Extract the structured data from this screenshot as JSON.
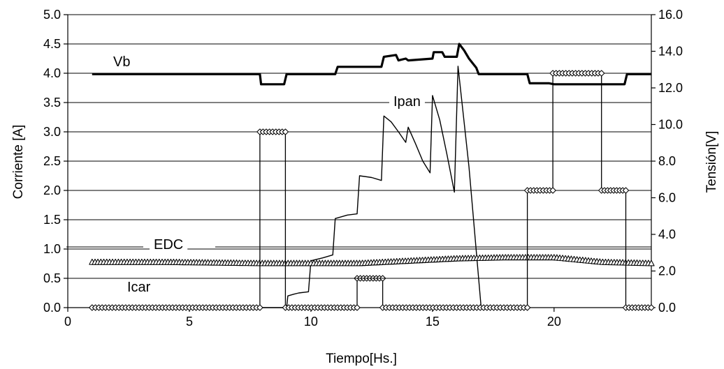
{
  "chart_data": {
    "type": "line",
    "title": "",
    "xlabel": "Tiempo[Hs.]",
    "ylabel_left": "Corriente [A]",
    "ylabel_right": "Tensión[V]",
    "xlim": [
      0,
      24
    ],
    "ylim_left": [
      0,
      5
    ],
    "ylim_right": [
      0,
      16
    ],
    "x_ticks": [
      0,
      5,
      10,
      15,
      20
    ],
    "y_left_ticks": [
      "0.0",
      "0.5",
      "1.0",
      "1.5",
      "2.0",
      "2.5",
      "3.0",
      "3.5",
      "4.0",
      "4.5",
      "5.0"
    ],
    "y_right_ticks": [
      "0.0",
      "2.0",
      "4.0",
      "6.0",
      "8.0",
      "10.0",
      "12.0",
      "14.0",
      "16.0"
    ],
    "grid": "horizontal",
    "series": [
      {
        "name": "Vb",
        "axis": "right",
        "style": "thick-line",
        "points": [
          [
            1,
            12.75
          ],
          [
            7.9,
            12.75
          ],
          [
            7.95,
            12.2
          ],
          [
            8.9,
            12.2
          ],
          [
            9,
            12.75
          ],
          [
            11,
            12.75
          ],
          [
            11.1,
            13.15
          ],
          [
            12.9,
            13.15
          ],
          [
            13,
            13.7
          ],
          [
            13.5,
            13.8
          ],
          [
            13.6,
            13.5
          ],
          [
            13.9,
            13.6
          ],
          [
            14,
            13.5
          ],
          [
            15,
            13.6
          ],
          [
            15.05,
            13.95
          ],
          [
            15.4,
            13.95
          ],
          [
            15.5,
            13.7
          ],
          [
            16,
            13.7
          ],
          [
            16.1,
            14.4
          ],
          [
            16.3,
            14.05
          ],
          [
            16.5,
            13.6
          ],
          [
            16.8,
            13.1
          ],
          [
            16.9,
            12.75
          ],
          [
            18.9,
            12.75
          ],
          [
            19,
            12.25
          ],
          [
            19.8,
            12.25
          ],
          [
            20,
            12.2
          ],
          [
            22.9,
            12.2
          ],
          [
            23,
            12.75
          ],
          [
            24,
            12.75
          ]
        ]
      },
      {
        "name": "Ipan",
        "axis": "left",
        "style": "thin-line",
        "points": [
          [
            8,
            0
          ],
          [
            9,
            0
          ],
          [
            9.05,
            0.2
          ],
          [
            9.3,
            0.23
          ],
          [
            9.5,
            0.25
          ],
          [
            9.9,
            0.27
          ],
          [
            10,
            0.8
          ],
          [
            10.5,
            0.85
          ],
          [
            10.9,
            0.9
          ],
          [
            11,
            1.52
          ],
          [
            11.5,
            1.58
          ],
          [
            11.9,
            1.6
          ],
          [
            12,
            2.25
          ],
          [
            12.5,
            2.22
          ],
          [
            12.9,
            2.17
          ],
          [
            13,
            3.27
          ],
          [
            13.3,
            3.17
          ],
          [
            13.6,
            3.0
          ],
          [
            13.9,
            2.82
          ],
          [
            14,
            3.08
          ],
          [
            14.3,
            2.8
          ],
          [
            14.6,
            2.5
          ],
          [
            14.9,
            2.3
          ],
          [
            15,
            3.62
          ],
          [
            15.3,
            3.2
          ],
          [
            15.6,
            2.6
          ],
          [
            15.9,
            1.97
          ],
          [
            16.05,
            4.12
          ],
          [
            16.5,
            2.4
          ],
          [
            17,
            0
          ]
        ]
      },
      {
        "name": "EDC",
        "axis": "left",
        "style": "triangle-markers",
        "points": [
          [
            1,
            0.78
          ],
          [
            4,
            0.78
          ],
          [
            8,
            0.76
          ],
          [
            10,
            0.76
          ],
          [
            12,
            0.76
          ],
          [
            14,
            0.8
          ],
          [
            16,
            0.84
          ],
          [
            18,
            0.86
          ],
          [
            20,
            0.86
          ],
          [
            22,
            0.78
          ],
          [
            24,
            0.76
          ]
        ]
      },
      {
        "name": "Icar",
        "axis": "left",
        "style": "diamond-markers",
        "points": [
          [
            1,
            0
          ],
          [
            7.9,
            0
          ],
          [
            7.9,
            3
          ],
          [
            8.95,
            3
          ],
          [
            8.95,
            0
          ],
          [
            11.9,
            0
          ],
          [
            11.9,
            0.5
          ],
          [
            12.95,
            0.5
          ],
          [
            12.95,
            0
          ],
          [
            18.9,
            0
          ],
          [
            18.9,
            2
          ],
          [
            19.95,
            2
          ],
          [
            19.95,
            4
          ],
          [
            21.95,
            4
          ],
          [
            21.95,
            2
          ],
          [
            22.95,
            2
          ],
          [
            22.95,
            0
          ],
          [
            24,
            0
          ]
        ]
      }
    ]
  }
}
